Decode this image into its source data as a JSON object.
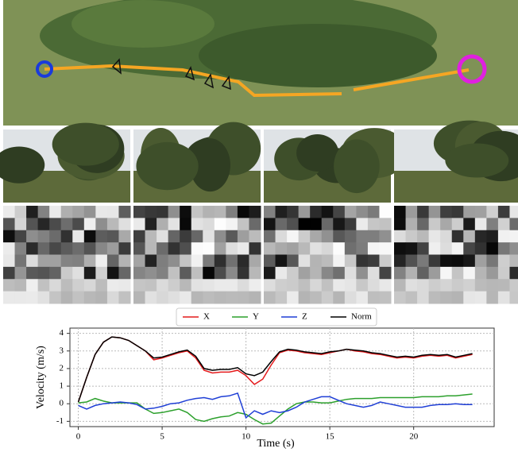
{
  "chart_data": {
    "type": "line",
    "ylabel": "Velocity (m/s)",
    "xlabel": "Time (s)",
    "grid": true,
    "legend": "top",
    "xlim": [
      -0.5,
      24.8
    ],
    "ylim": [
      -1.3,
      4.3
    ],
    "xticks": [
      0,
      5,
      10,
      15,
      20
    ],
    "yticks": [
      -1,
      0,
      1,
      2,
      3,
      4
    ],
    "x": [
      0,
      0.5,
      1,
      1.5,
      2,
      2.5,
      3,
      3.5,
      4,
      4.5,
      5,
      5.5,
      6,
      6.5,
      7,
      7.5,
      8,
      8.5,
      9,
      9.5,
      10,
      10.5,
      11,
      11.5,
      12,
      12.5,
      13,
      13.5,
      14,
      14.5,
      15,
      15.5,
      16,
      16.5,
      17,
      17.5,
      18,
      18.5,
      19,
      19.5,
      20,
      20.5,
      21,
      21.5,
      22,
      22.5,
      23,
      23.5
    ],
    "series": [
      {
        "name": "X",
        "color": "#e41a1c",
        "values": [
          0.1,
          1.5,
          2.8,
          3.5,
          3.8,
          3.75,
          3.6,
          3.3,
          3.0,
          2.5,
          2.6,
          2.75,
          2.9,
          3.0,
          2.6,
          1.9,
          1.75,
          1.8,
          1.8,
          1.9,
          1.6,
          1.1,
          1.4,
          2.2,
          2.9,
          3.05,
          3.0,
          2.9,
          2.85,
          2.8,
          2.9,
          3.0,
          3.1,
          3.0,
          2.95,
          2.85,
          2.8,
          2.7,
          2.6,
          2.65,
          2.6,
          2.7,
          2.75,
          2.7,
          2.75,
          2.6,
          2.7,
          2.8
        ]
      },
      {
        "name": "Y",
        "color": "#2ca02c",
        "values": [
          0.05,
          0.1,
          0.3,
          0.15,
          0.05,
          0.05,
          0.05,
          0.05,
          -0.3,
          -0.55,
          -0.5,
          -0.4,
          -0.3,
          -0.5,
          -0.9,
          -1.0,
          -0.85,
          -0.75,
          -0.7,
          -0.5,
          -0.6,
          -0.9,
          -1.15,
          -1.1,
          -0.7,
          -0.3,
          0.0,
          0.1,
          0.1,
          0.05,
          0.05,
          0.15,
          0.25,
          0.3,
          0.3,
          0.3,
          0.35,
          0.35,
          0.35,
          0.35,
          0.35,
          0.4,
          0.4,
          0.4,
          0.45,
          0.45,
          0.5,
          0.55
        ]
      },
      {
        "name": "Z",
        "color": "#1f3fd6",
        "values": [
          -0.1,
          -0.3,
          -0.1,
          0.0,
          0.05,
          0.1,
          0.05,
          -0.05,
          -0.3,
          -0.25,
          -0.15,
          0.0,
          0.05,
          0.2,
          0.3,
          0.35,
          0.25,
          0.4,
          0.45,
          0.6,
          -0.8,
          -0.4,
          -0.6,
          -0.4,
          -0.5,
          -0.4,
          -0.2,
          0.1,
          0.25,
          0.4,
          0.4,
          0.2,
          0.0,
          -0.1,
          -0.2,
          -0.1,
          0.1,
          0.0,
          -0.1,
          -0.2,
          -0.2,
          -0.2,
          -0.1,
          -0.05,
          -0.05,
          0.0,
          -0.05,
          -0.05
        ]
      },
      {
        "name": "Norm",
        "color": "#000000",
        "values": [
          0.1,
          1.5,
          2.8,
          3.5,
          3.8,
          3.75,
          3.6,
          3.3,
          3.0,
          2.6,
          2.65,
          2.8,
          2.95,
          3.05,
          2.7,
          2.0,
          1.9,
          1.95,
          1.95,
          2.05,
          1.7,
          1.6,
          1.8,
          2.4,
          2.95,
          3.1,
          3.05,
          2.95,
          2.9,
          2.85,
          2.95,
          3.0,
          3.1,
          3.05,
          3.0,
          2.9,
          2.85,
          2.75,
          2.65,
          2.7,
          2.65,
          2.75,
          2.8,
          2.75,
          2.8,
          2.65,
          2.75,
          2.85
        ]
      }
    ]
  }
}
